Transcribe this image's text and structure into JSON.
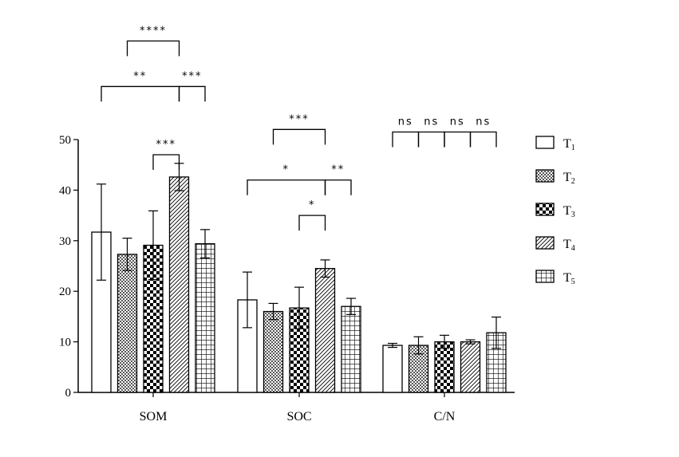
{
  "chart_data": {
    "type": "bar",
    "title": "",
    "xlabel": "",
    "ylabel": "",
    "ylim": [
      0,
      50
    ],
    "yticks": [
      "0",
      "10",
      "20",
      "30",
      "40",
      "50"
    ],
    "categories": [
      "SOM",
      "SOC",
      "C/N"
    ],
    "legend_position": "right",
    "grid": false,
    "series": [
      {
        "name": "T",
        "sub": "1",
        "pattern": "white",
        "values": [
          31.7,
          18.3,
          9.3
        ],
        "errors": [
          9.5,
          5.5,
          0.4
        ]
      },
      {
        "name": "T",
        "sub": "2",
        "pattern": "fine-checker",
        "values": [
          27.3,
          16.0,
          9.3
        ],
        "errors": [
          3.2,
          1.6,
          1.7
        ]
      },
      {
        "name": "T",
        "sub": "3",
        "pattern": "checker",
        "values": [
          29.1,
          16.7,
          10.0
        ],
        "errors": [
          6.8,
          4.1,
          1.3
        ]
      },
      {
        "name": "T",
        "sub": "4",
        "pattern": "diagonal",
        "values": [
          42.6,
          24.5,
          10.0
        ],
        "errors": [
          2.7,
          1.7,
          0.4
        ]
      },
      {
        "name": "T",
        "sub": "5",
        "pattern": "grid",
        "values": [
          29.4,
          17.0,
          11.8
        ],
        "errors": [
          2.8,
          1.6,
          3.1
        ]
      }
    ],
    "significance": [
      {
        "category": 0,
        "from": 2,
        "to": 3,
        "label": "***",
        "level": 47.0
      },
      {
        "category": 0,
        "from": 0,
        "to": 3,
        "label": "**",
        "level": 60.5
      },
      {
        "category": 0,
        "from": 3,
        "to": 4,
        "label": "***",
        "level": 60.5
      },
      {
        "category": 0,
        "from": 1,
        "to": 3,
        "label": "****",
        "level": 69.5
      },
      {
        "category": 1,
        "from": 2,
        "to": 3,
        "label": "*",
        "level": 35.0
      },
      {
        "category": 1,
        "from": 0,
        "to": 3,
        "label": "*",
        "level": 42.0
      },
      {
        "category": 1,
        "from": 3,
        "to": 4,
        "label": "**",
        "level": 42.0
      },
      {
        "category": 1,
        "from": 1,
        "to": 3,
        "label": "***",
        "level": 52.0
      },
      {
        "category": 2,
        "from": 0,
        "to": 1,
        "label": "ns",
        "level": 51.5
      },
      {
        "category": 2,
        "from": 1,
        "to": 2,
        "label": "ns",
        "level": 51.5
      },
      {
        "category": 2,
        "from": 2,
        "to": 3,
        "label": "ns",
        "level": 51.5
      },
      {
        "category": 2,
        "from": 3,
        "to": 4,
        "label": "ns",
        "level": 51.5
      }
    ]
  }
}
